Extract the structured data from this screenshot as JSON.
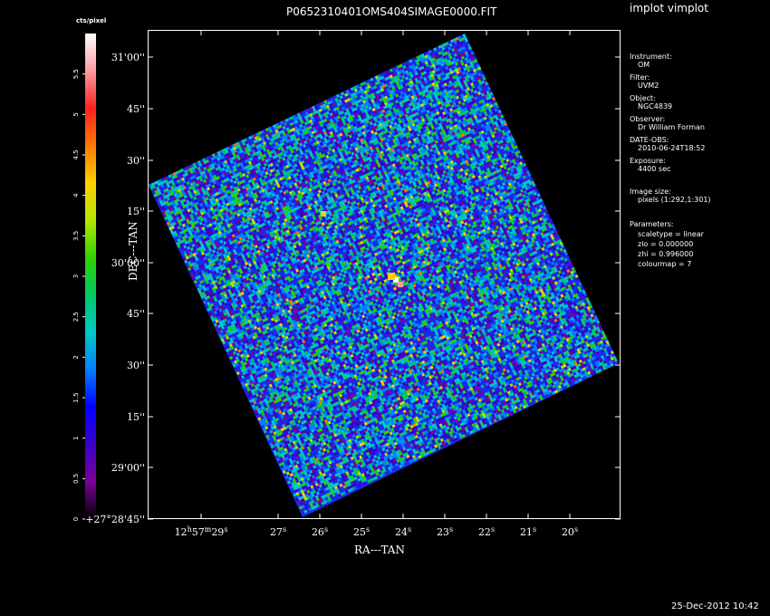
{
  "window": {
    "title": "P0652310401OMS404SIMAGE0000.FIT",
    "app_label": "implot vimplot"
  },
  "colorbar": {
    "unit_label": "cts/pixel",
    "ticks": [
      "0",
      "0.5",
      "1",
      "1.5",
      "2",
      "2.5",
      "3",
      "3.5",
      "4",
      "4.5",
      "5",
      "5.5"
    ],
    "colormap": [
      "#000000",
      "#7a0096",
      "#3c00c8",
      "#0000ff",
      "#0080ff",
      "#00c8c8",
      "#00c864",
      "#32d200",
      "#b4e600",
      "#ffd000",
      "#ff7a00",
      "#ff2020",
      "#ff9aa0",
      "#ffffff"
    ]
  },
  "axes": {
    "x_label": "RA---TAN",
    "y_label": "DEC---TAN",
    "x_ticks": [
      {
        "h": "12",
        "m": "57",
        "s": "29"
      },
      {
        "s": "27"
      },
      {
        "s": "26"
      },
      {
        "s": "25"
      },
      {
        "s": "24"
      },
      {
        "s": "23"
      },
      {
        "s": "22"
      },
      {
        "s": "21"
      },
      {
        "s": "20"
      }
    ],
    "y_ticks": [
      {
        "deg": "",
        "text": "31'00''"
      },
      {
        "text": "45''"
      },
      {
        "text": "30''"
      },
      {
        "text": "15''"
      },
      {
        "text": "30'00''"
      },
      {
        "text": "45''"
      },
      {
        "text": "30''"
      },
      {
        "text": "15''"
      },
      {
        "text": "29'00''"
      },
      {
        "text": "+27°28'45''"
      }
    ]
  },
  "info_panel": [
    {
      "label": "Instrument:",
      "value": "OM"
    },
    {
      "label": "Filter:",
      "value": "UVM2"
    },
    {
      "label": "Object:",
      "value": "NGC4839"
    },
    {
      "label": "Observer:",
      "value": "Dr William Forman"
    },
    {
      "label": "DATE-OBS:",
      "value": "2010-06-24T18:52"
    },
    {
      "label": "Exposure:",
      "value": "4400 sec"
    },
    {
      "label": "Image size:",
      "value": "pixels (1:292,1:301)"
    }
  ],
  "parameters": {
    "label": "Parameters:",
    "lines": [
      "scaletype = linear",
      "zlo = 0.000000",
      "zhi = 0.996000",
      "colourmap =    7"
    ]
  },
  "footer": {
    "timestamp": "25-Dec-2012 10:42"
  }
}
